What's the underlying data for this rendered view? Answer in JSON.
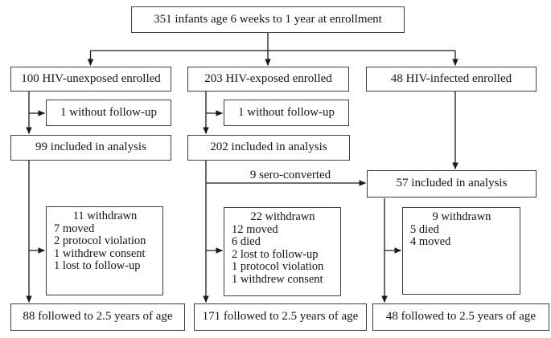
{
  "colors": {
    "ink": "#1a1a1a",
    "box_border": "#3f3f3f",
    "background": "#ffffff"
  },
  "diagram": {
    "top_label": "351 infants age 6 weeks to 1 year at enrollment",
    "sero_label": "9 sero-converted",
    "columns": [
      {
        "enrolled": "100 HIV-unexposed enrolled",
        "no_followup": "1 without follow-up",
        "analysis": "99 included in analysis",
        "withdrawn_title": "11 withdrawn",
        "withdrawn_lines": [
          "7 moved",
          "2 protocol violation",
          "1 withdrew consent",
          "1 lost to follow-up"
        ],
        "followed": "88 followed to 2.5 years of age"
      },
      {
        "enrolled": "203 HIV-exposed enrolled",
        "no_followup": "1 without follow-up",
        "analysis": "202 included in analysis",
        "withdrawn_title": "22 withdrawn",
        "withdrawn_lines": [
          "12 moved",
          "6 died",
          "2 lost to follow-up",
          "1 protocol violation",
          "1 withdrew consent"
        ],
        "followed": "171 followed to 2.5 years of age"
      },
      {
        "enrolled": "48 HIV-infected enrolled",
        "analysis": "57 included in analysis",
        "withdrawn_title": "9 withdrawn",
        "withdrawn_lines": [
          "5 died",
          "4 moved"
        ],
        "followed": "48 followed to 2.5 years of age"
      }
    ]
  }
}
